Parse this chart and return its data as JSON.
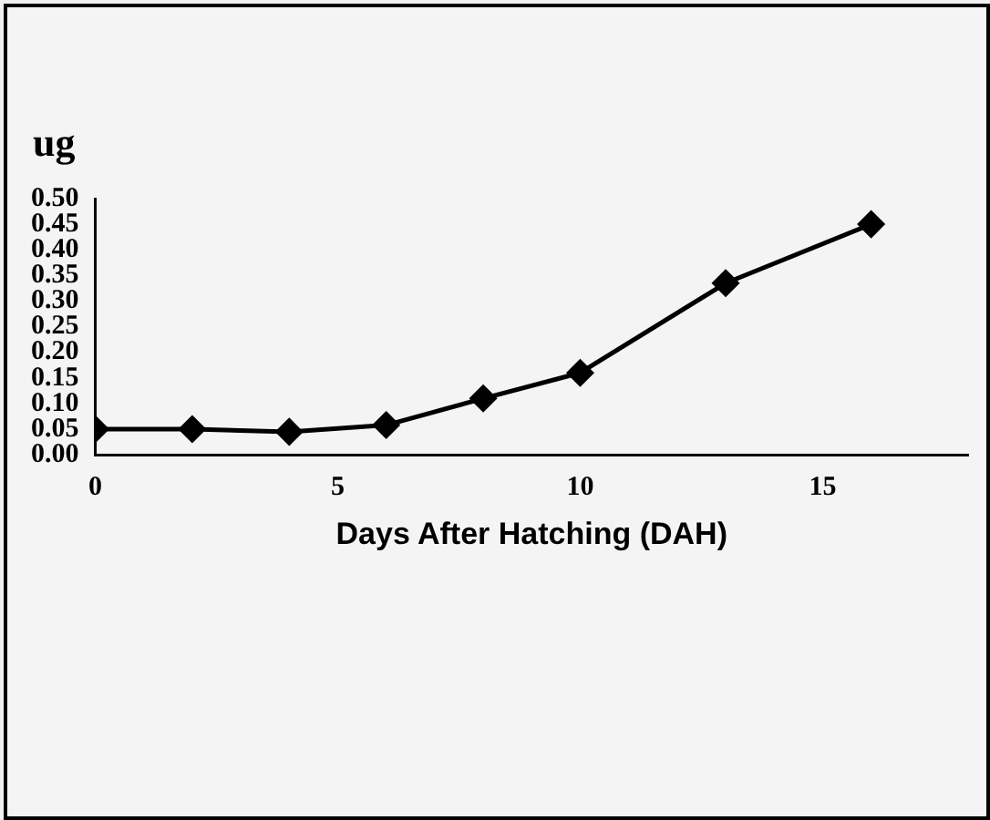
{
  "chart_data": {
    "type": "line",
    "ylabel": "ug",
    "xlabel": "Days After Hatching (DAH)",
    "x": [
      0,
      2,
      4,
      6,
      8,
      10,
      13,
      16
    ],
    "series": [
      {
        "color": "#000000",
        "values": [
          0.05,
          0.05,
          0.045,
          0.058,
          0.11,
          0.16,
          0.335,
          0.45
        ]
      }
    ],
    "xlim": [
      0,
      18
    ],
    "xticks": [
      0,
      5,
      10,
      15
    ],
    "ylim": [
      0,
      0.5
    ],
    "yticks": [
      {
        "value": 0,
        "label": "0.00"
      },
      {
        "value": 0.05,
        "label": "0.05"
      },
      {
        "value": 0.1,
        "label": "0.10"
      },
      {
        "value": 0.15,
        "label": "0.15"
      },
      {
        "value": 0.2,
        "label": "0.20"
      },
      {
        "value": 0.25,
        "label": "0.25"
      },
      {
        "value": 0.3,
        "label": "0.30"
      },
      {
        "value": 0.35,
        "label": "0.35"
      },
      {
        "value": 0.4,
        "label": "0.40"
      },
      {
        "value": 0.45,
        "label": "0.45"
      },
      {
        "value": 0.5,
        "label": "0.50"
      }
    ],
    "grid": false,
    "legend": false,
    "marker": "diamond",
    "line_style": "solid"
  }
}
